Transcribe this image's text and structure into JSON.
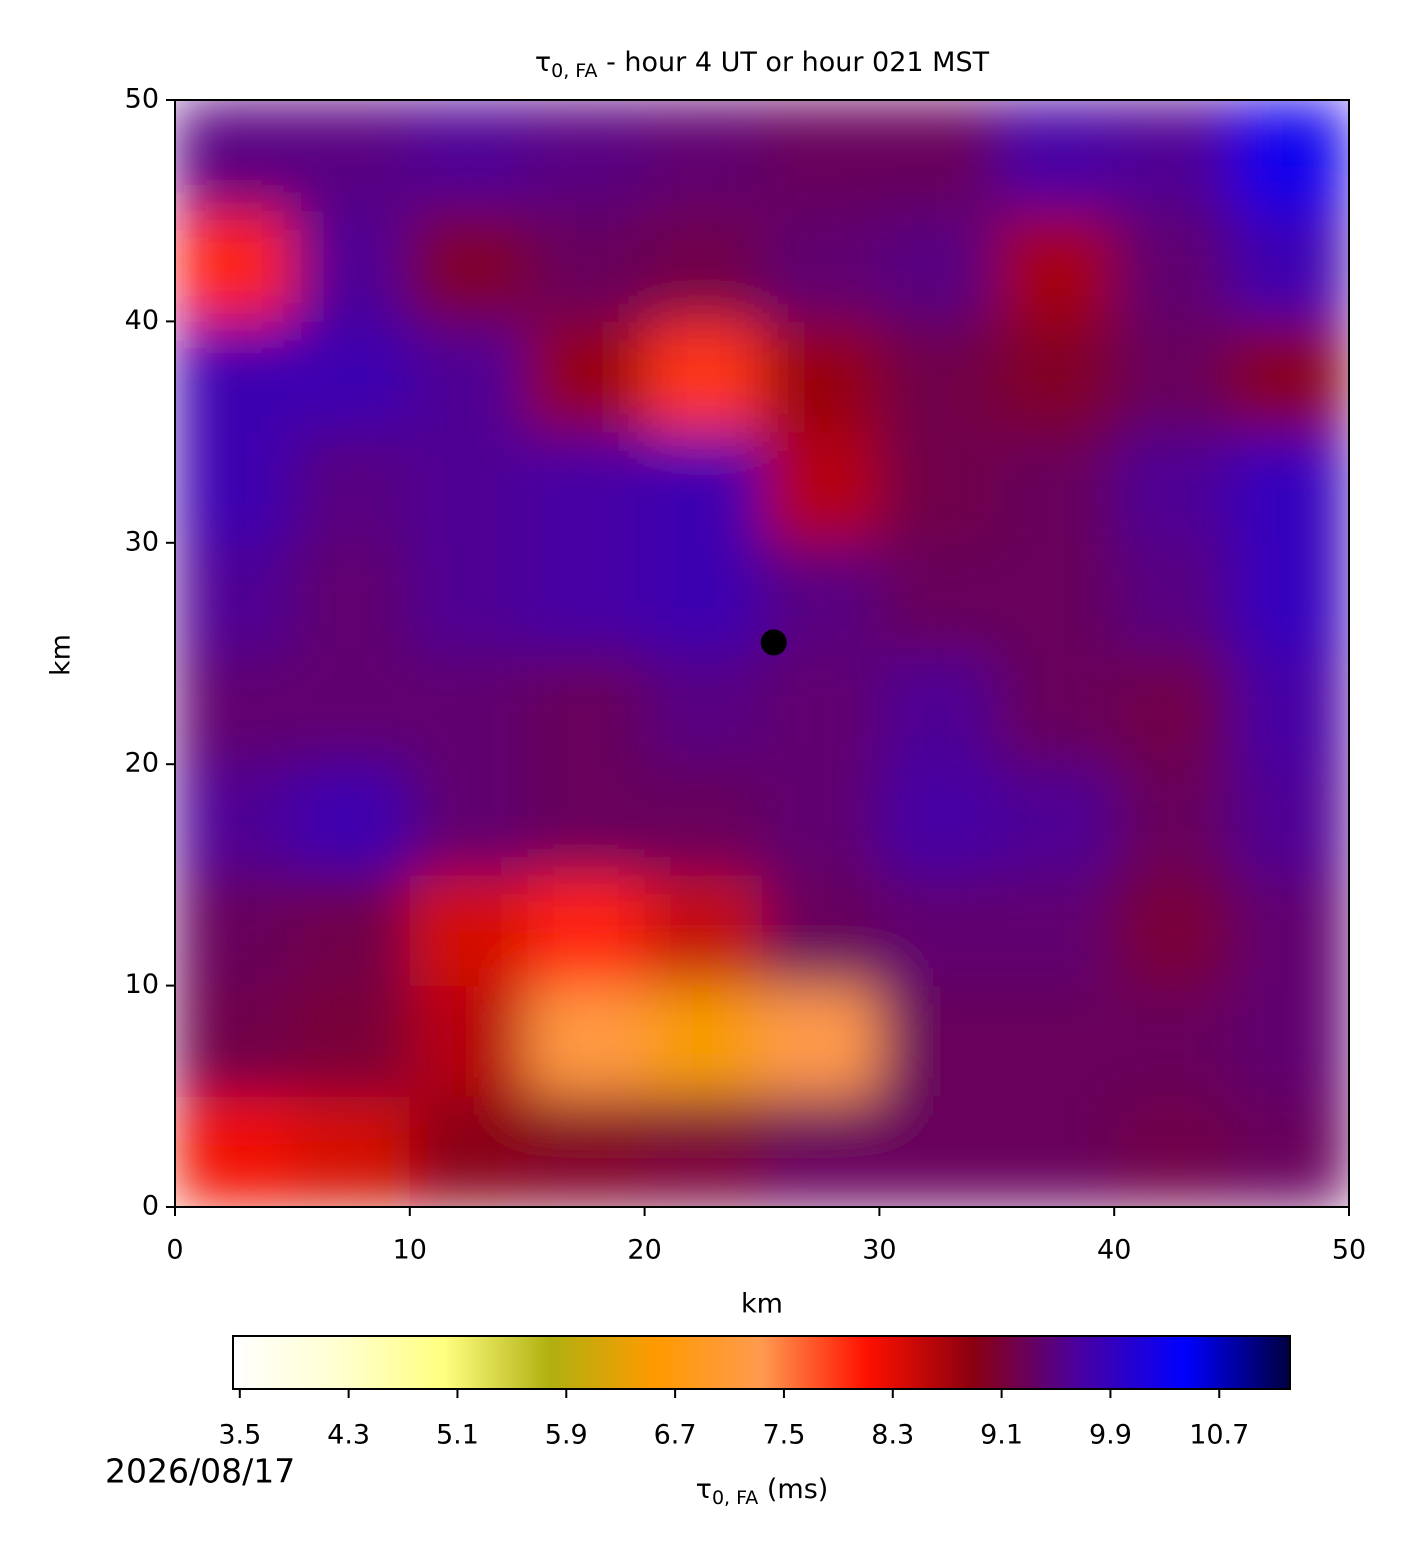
{
  "chart_data": {
    "type": "heatmap",
    "title": {
      "symbol": "τ",
      "subscript": "0, FA",
      "rest": " - hour 4 UT or hour 021 MST"
    },
    "xlabel": "km",
    "ylabel": "km",
    "xlim": [
      0,
      50
    ],
    "ylim": [
      0,
      50
    ],
    "xticks": [
      0,
      10,
      20,
      30,
      40,
      50
    ],
    "yticks": [
      0,
      10,
      20,
      30,
      40,
      50
    ],
    "x": [
      2.5,
      7.5,
      12.5,
      17.5,
      22.5,
      27.5,
      32.5,
      37.5,
      42.5,
      47.5
    ],
    "y": [
      2.5,
      7.5,
      12.5,
      17.5,
      22.5,
      27.5,
      32.5,
      37.5,
      42.5,
      47.5
    ],
    "values": [
      [
        8.2,
        8.4,
        8.9,
        9.0,
        9.1,
        9.3,
        9.3,
        9.3,
        9.2,
        9.3
      ],
      [
        9.2,
        9.1,
        8.6,
        7.2,
        6.5,
        7.3,
        9.3,
        9.3,
        9.3,
        9.4
      ],
      [
        9.3,
        9.2,
        8.4,
        8.0,
        8.5,
        9.3,
        9.4,
        9.4,
        9.1,
        9.4
      ],
      [
        9.6,
        9.8,
        9.4,
        9.3,
        9.3,
        9.4,
        9.7,
        9.6,
        9.3,
        9.6
      ],
      [
        9.4,
        9.4,
        9.4,
        9.3,
        9.5,
        9.4,
        9.6,
        9.3,
        9.2,
        9.7
      ],
      [
        9.6,
        9.4,
        9.6,
        9.7,
        9.8,
        9.5,
        9.3,
        9.3,
        9.5,
        9.9
      ],
      [
        9.8,
        9.5,
        9.6,
        9.7,
        9.8,
        8.6,
        9.2,
        9.3,
        9.6,
        9.9
      ],
      [
        9.8,
        9.8,
        9.6,
        8.8,
        7.9,
        8.8,
        9.2,
        9.0,
        9.3,
        8.9
      ],
      [
        8.0,
        9.6,
        9.0,
        9.3,
        9.2,
        9.4,
        9.5,
        8.7,
        9.4,
        9.8
      ],
      [
        9.5,
        9.5,
        9.6,
        9.5,
        9.4,
        9.3,
        9.3,
        9.7,
        9.6,
        10.3
      ]
    ],
    "clim": [
      3.45,
      11.22
    ],
    "colormap": [
      "#ffffff",
      "#ffffd0",
      "#ffff80",
      "#b0b010",
      "#ff9a00",
      "#ff9a50",
      "#ff1000",
      "#8a0010",
      "#4a00a0",
      "#0000ff",
      "#000040"
    ],
    "marker": {
      "x": 25.5,
      "y": 25.5,
      "color": "#000000"
    },
    "cbar_ticks": [
      3.5,
      4.3,
      5.1,
      5.9,
      6.7,
      7.5,
      8.3,
      9.1,
      9.9,
      10.7
    ],
    "colorbar_label": {
      "symbol": "τ",
      "subscript": "0, FA",
      "rest": " (ms)"
    },
    "date": "2026/08/17"
  }
}
